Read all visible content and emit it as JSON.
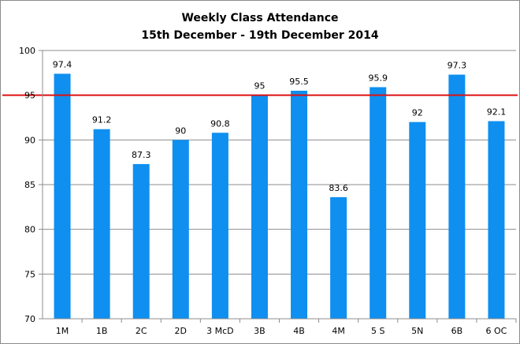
{
  "chart_data": {
    "type": "bar",
    "title": "Weekly Class Attendance",
    "subtitle": "15th December - 19th December 2014",
    "xlabel": "",
    "ylabel": "",
    "categories": [
      "1M",
      "1B",
      "2C",
      "2D",
      "3 McD",
      "3B",
      "4B",
      "4M",
      "5 S",
      "5N",
      "6B",
      "6 OC"
    ],
    "values": [
      97.4,
      91.2,
      87.3,
      90,
      90.8,
      95,
      95.5,
      83.6,
      95.9,
      92,
      97.3,
      92.1
    ],
    "value_labels": [
      "97.4",
      "91.2",
      "87.3",
      "90",
      "90.8",
      "95",
      "95.5",
      "83.6",
      "95.9",
      "92",
      "97.3",
      "92.1"
    ],
    "ylim": [
      70,
      100
    ],
    "yticks": [
      "70",
      "75",
      "80",
      "85",
      "90",
      "95",
      "100"
    ],
    "reference_line": 95,
    "grid": true,
    "legend": "none",
    "colors": {
      "bar": "#0f8ff0",
      "reference_line": "#dd1111",
      "grid": "#8c8c8c",
      "axis": "#8c8c8c"
    }
  }
}
